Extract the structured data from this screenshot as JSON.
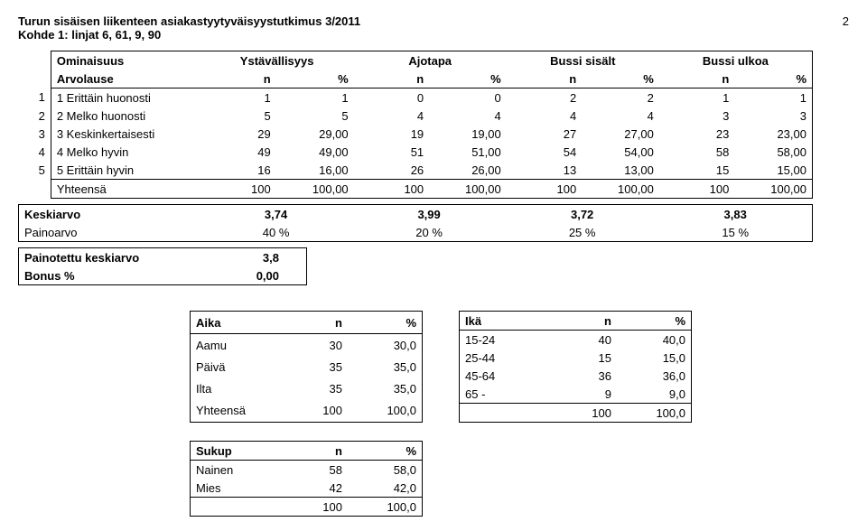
{
  "page_number": "2",
  "header": {
    "title": "Turun sisäisen liikenteen asiakastyytyväisyystutkimus 3/2011",
    "subtitle": "Kohde 1: linjat 6, 61, 9, 90"
  },
  "main_table": {
    "row1_label": "Ominaisuus",
    "groups": [
      "Ystävällisyys",
      "Ajotapa",
      "Bussi sisält",
      "Bussi ulkoa"
    ],
    "row2_label": "Arvolause",
    "subheads": [
      "n",
      "%",
      "n",
      "%",
      "n",
      "%",
      "n",
      "%"
    ],
    "rows": [
      {
        "lead": "1",
        "label": "1 Erittäin huonosti",
        "cells": [
          "1",
          "1",
          "0",
          "0",
          "2",
          "2",
          "1",
          "1"
        ]
      },
      {
        "lead": "2",
        "label": "2 Melko huonosti",
        "cells": [
          "5",
          "5",
          "4",
          "4",
          "4",
          "4",
          "3",
          "3"
        ]
      },
      {
        "lead": "3",
        "label": "3 Keskinkertaisesti",
        "cells": [
          "29",
          "29,00",
          "19",
          "19,00",
          "27",
          "27,00",
          "23",
          "23,00"
        ]
      },
      {
        "lead": "4",
        "label": "4 Melko hyvin",
        "cells": [
          "49",
          "49,00",
          "51",
          "51,00",
          "54",
          "54,00",
          "58",
          "58,00"
        ]
      },
      {
        "lead": "5",
        "label": "5 Erittäin hyvin",
        "cells": [
          "16",
          "16,00",
          "26",
          "26,00",
          "13",
          "13,00",
          "15",
          "15,00"
        ]
      }
    ],
    "total_label": "Yhteensä",
    "total_cells": [
      "100",
      "100,00",
      "100",
      "100,00",
      "100",
      "100,00",
      "100",
      "100,00"
    ]
  },
  "kbox": {
    "r1_label": "Keskiarvo",
    "r1": [
      "3,74",
      "3,99",
      "3,72",
      "3,83"
    ],
    "r2_label": "Painoarvo",
    "r2": [
      "40 %",
      "20 %",
      "25 %",
      "15 %"
    ]
  },
  "pbox": {
    "r1_label": "Painotettu keskiarvo",
    "r1_val": "3,8",
    "r2_label": "Bonus %",
    "r2_val": "0,00"
  },
  "aika": {
    "title": "Aika",
    "h_n": "n",
    "h_p": "%",
    "rows": [
      {
        "label": "Aamu",
        "n": "30",
        "p": "30,0"
      },
      {
        "label": "Päivä",
        "n": "35",
        "p": "35,0"
      },
      {
        "label": "Ilta",
        "n": "35",
        "p": "35,0"
      },
      {
        "label": "Yhteensä",
        "n": "100",
        "p": "100,0"
      }
    ]
  },
  "ika": {
    "title": "Ikä",
    "h_n": "n",
    "h_p": "%",
    "rows": [
      {
        "label": "15-24",
        "n": "40",
        "p": "40,0"
      },
      {
        "label": "25-44",
        "n": "15",
        "p": "15,0"
      },
      {
        "label": "45-64",
        "n": "36",
        "p": "36,0"
      },
      {
        "label": "65 -",
        "n": "9",
        "p": "9,0"
      }
    ],
    "total_n": "100",
    "total_p": "100,0"
  },
  "sukup": {
    "title": "Sukup",
    "h_n": "n",
    "h_p": "%",
    "rows": [
      {
        "label": "Nainen",
        "n": "58",
        "p": "58,0"
      },
      {
        "label": "Mies",
        "n": "42",
        "p": "42,0"
      }
    ],
    "total_n": "100",
    "total_p": "100,0"
  }
}
